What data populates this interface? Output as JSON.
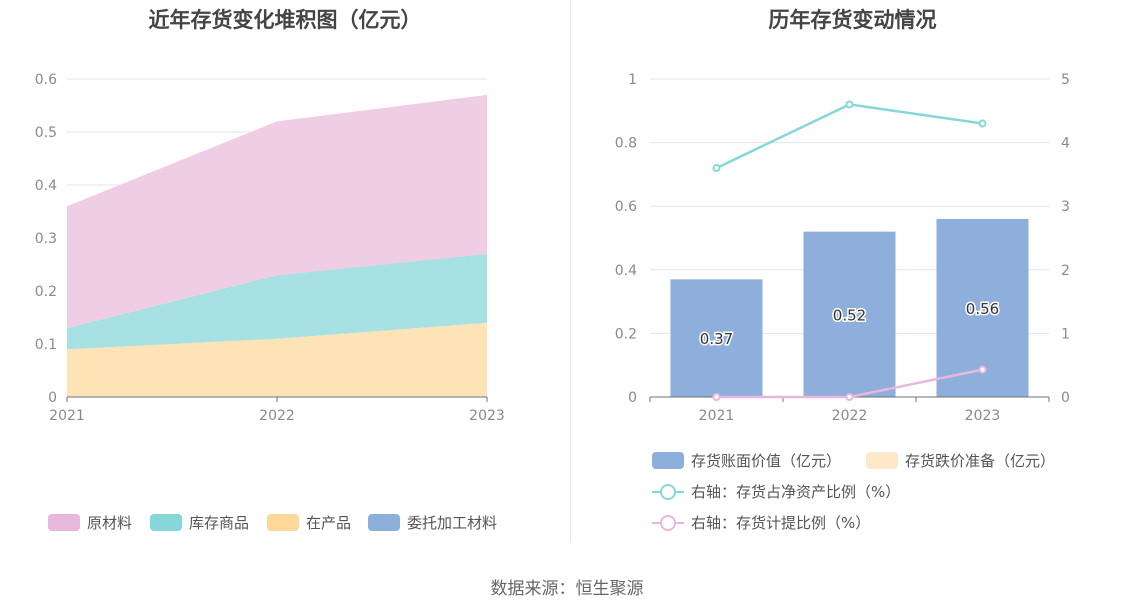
{
  "source_text": "数据来源：恒生聚源",
  "chart_data": [
    {
      "type": "area",
      "stacked": true,
      "title": "近年存货变化堆积图（亿元）",
      "x": [
        "2021",
        "2022",
        "2023"
      ],
      "yticks": [
        "0",
        "0.1",
        "0.2",
        "0.3",
        "0.4",
        "0.5",
        "0.6"
      ],
      "ylim": [
        0,
        0.6
      ],
      "series": [
        {
          "name": "在产品",
          "values": [
            0.09,
            0.11,
            0.14
          ],
          "color": "#fde3b6"
        },
        {
          "name": "库存商品",
          "values": [
            0.04,
            0.12,
            0.13
          ],
          "color": "#a7e1e3"
        },
        {
          "name": "原材料",
          "values": [
            0.23,
            0.29,
            0.3
          ],
          "color": "#efcde5"
        },
        {
          "name": "委托加工材料",
          "values": [
            0,
            0,
            0
          ],
          "color": "#8eaedb"
        }
      ],
      "legend": [
        {
          "name": "原材料",
          "color": "#e8b8dc"
        },
        {
          "name": "库存商品",
          "color": "#86d7d9"
        },
        {
          "name": "在产品",
          "color": "#fdd899"
        },
        {
          "name": "委托加工材料",
          "color": "#8eaedb"
        }
      ]
    },
    {
      "type": "bar+line",
      "title": "历年存货变动情况",
      "x": [
        "2021",
        "2022",
        "2023"
      ],
      "ylim_left": [
        0,
        1
      ],
      "ylim_right": [
        0,
        5
      ],
      "yticks_left": [
        "0",
        "0.2",
        "0.4",
        "0.6",
        "0.8",
        "1"
      ],
      "yticks_right": [
        "0",
        "1",
        "2",
        "3",
        "4",
        "5"
      ],
      "bars": [
        {
          "name": "存货账面价值（亿元）",
          "values": [
            0.37,
            0.52,
            0.56
          ],
          "labels": [
            "0.37",
            "0.52",
            "0.56"
          ],
          "color": "#8eaedb"
        },
        {
          "name": "存货跌价准备（亿元）",
          "values": [
            0,
            0,
            0
          ],
          "color": "#fde9c9"
        }
      ],
      "lines": [
        {
          "name": "右轴：存货占净资产比例（%）",
          "values": [
            3.6,
            4.6,
            4.3
          ],
          "color": "#86d7d9"
        },
        {
          "name": "右轴：存货计提比例（%）",
          "values": [
            0,
            0,
            0.43
          ],
          "color": "#e8b8dc"
        }
      ]
    }
  ]
}
